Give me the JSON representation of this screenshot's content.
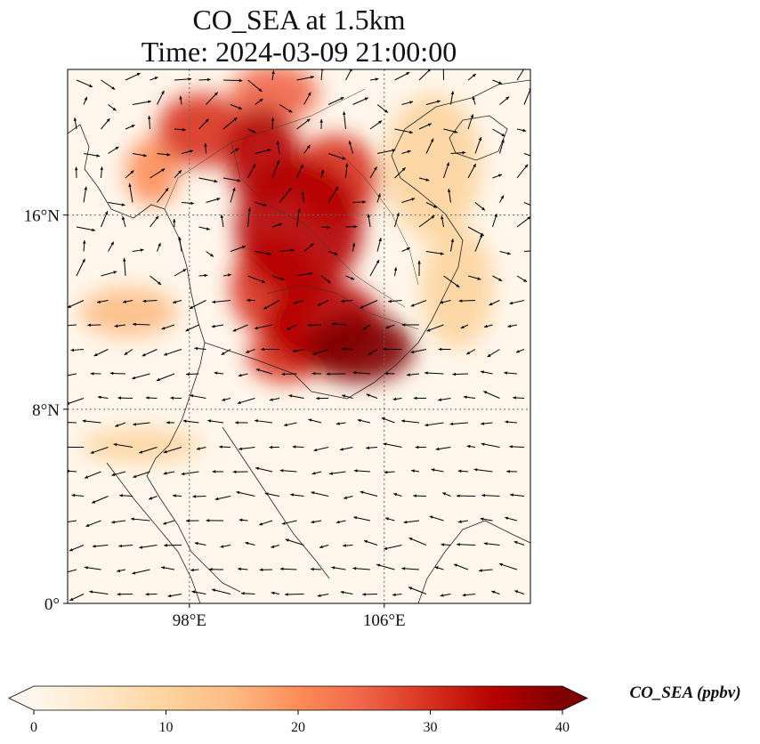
{
  "title": {
    "line1": "CO_SEA at 1.5km",
    "line2": "Time: 2024-03-09 21:00:00"
  },
  "map": {
    "lon_range": [
      93,
      112
    ],
    "lat_range": [
      0,
      22
    ],
    "lon_ticks": [
      {
        "value": 98,
        "label": "98°E"
      },
      {
        "value": 106,
        "label": "106°E"
      }
    ],
    "lat_ticks": [
      {
        "value": 0,
        "label": "0°"
      },
      {
        "value": 8,
        "label": "8°N"
      },
      {
        "value": 16,
        "label": "16°N"
      }
    ],
    "gridlines": true,
    "wind_vectors": true
  },
  "colorbar": {
    "label": "CO_SEA (ppbv)",
    "min": 0,
    "max": 40,
    "extend": "both",
    "colormap": "OrRd",
    "colors": [
      "#fff7ec",
      "#fee8c8",
      "#fdd49e",
      "#fdbb84",
      "#fc8d59",
      "#ef6548",
      "#d7301f",
      "#b30000",
      "#7f0000"
    ],
    "ticks": [
      {
        "value": 0,
        "label": "0"
      },
      {
        "value": 10,
        "label": "10"
      },
      {
        "value": 20,
        "label": "20"
      },
      {
        "value": 30,
        "label": "30"
      },
      {
        "value": 40,
        "label": "40"
      }
    ]
  },
  "plumes": [
    {
      "lon": 105.0,
      "lat": 10.5,
      "rx": 2.2,
      "ry": 1.4,
      "v": 40
    },
    {
      "lon": 103.5,
      "lat": 11.5,
      "rx": 2.4,
      "ry": 1.8,
      "v": 35
    },
    {
      "lon": 101.5,
      "lat": 13.0,
      "rx": 1.8,
      "ry": 2.0,
      "v": 32
    },
    {
      "lon": 102.5,
      "lat": 15.5,
      "rx": 2.6,
      "ry": 2.8,
      "v": 34
    },
    {
      "lon": 101.0,
      "lat": 18.5,
      "rx": 1.5,
      "ry": 2.0,
      "v": 33
    },
    {
      "lon": 104.0,
      "lat": 17.5,
      "rx": 1.8,
      "ry": 1.8,
      "v": 30
    },
    {
      "lon": 98.5,
      "lat": 19.5,
      "rx": 1.8,
      "ry": 1.5,
      "v": 28
    },
    {
      "lon": 101.5,
      "lat": 21.0,
      "rx": 1.8,
      "ry": 1.2,
      "v": 26
    },
    {
      "lon": 96.5,
      "lat": 17.8,
      "rx": 1.1,
      "ry": 1.4,
      "v": 22
    },
    {
      "lon": 102.0,
      "lat": 10.2,
      "rx": 1.6,
      "ry": 1.1,
      "v": 30
    },
    {
      "lon": 108.0,
      "lat": 18.0,
      "rx": 2.0,
      "ry": 3.0,
      "v": 12
    },
    {
      "lon": 95.5,
      "lat": 12.0,
      "rx": 2.0,
      "ry": 1.0,
      "v": 14
    },
    {
      "lon": 96.0,
      "lat": 6.5,
      "rx": 2.5,
      "ry": 0.7,
      "v": 12
    },
    {
      "lon": 109.0,
      "lat": 13.0,
      "rx": 1.5,
      "ry": 2.5,
      "v": 8
    }
  ]
}
